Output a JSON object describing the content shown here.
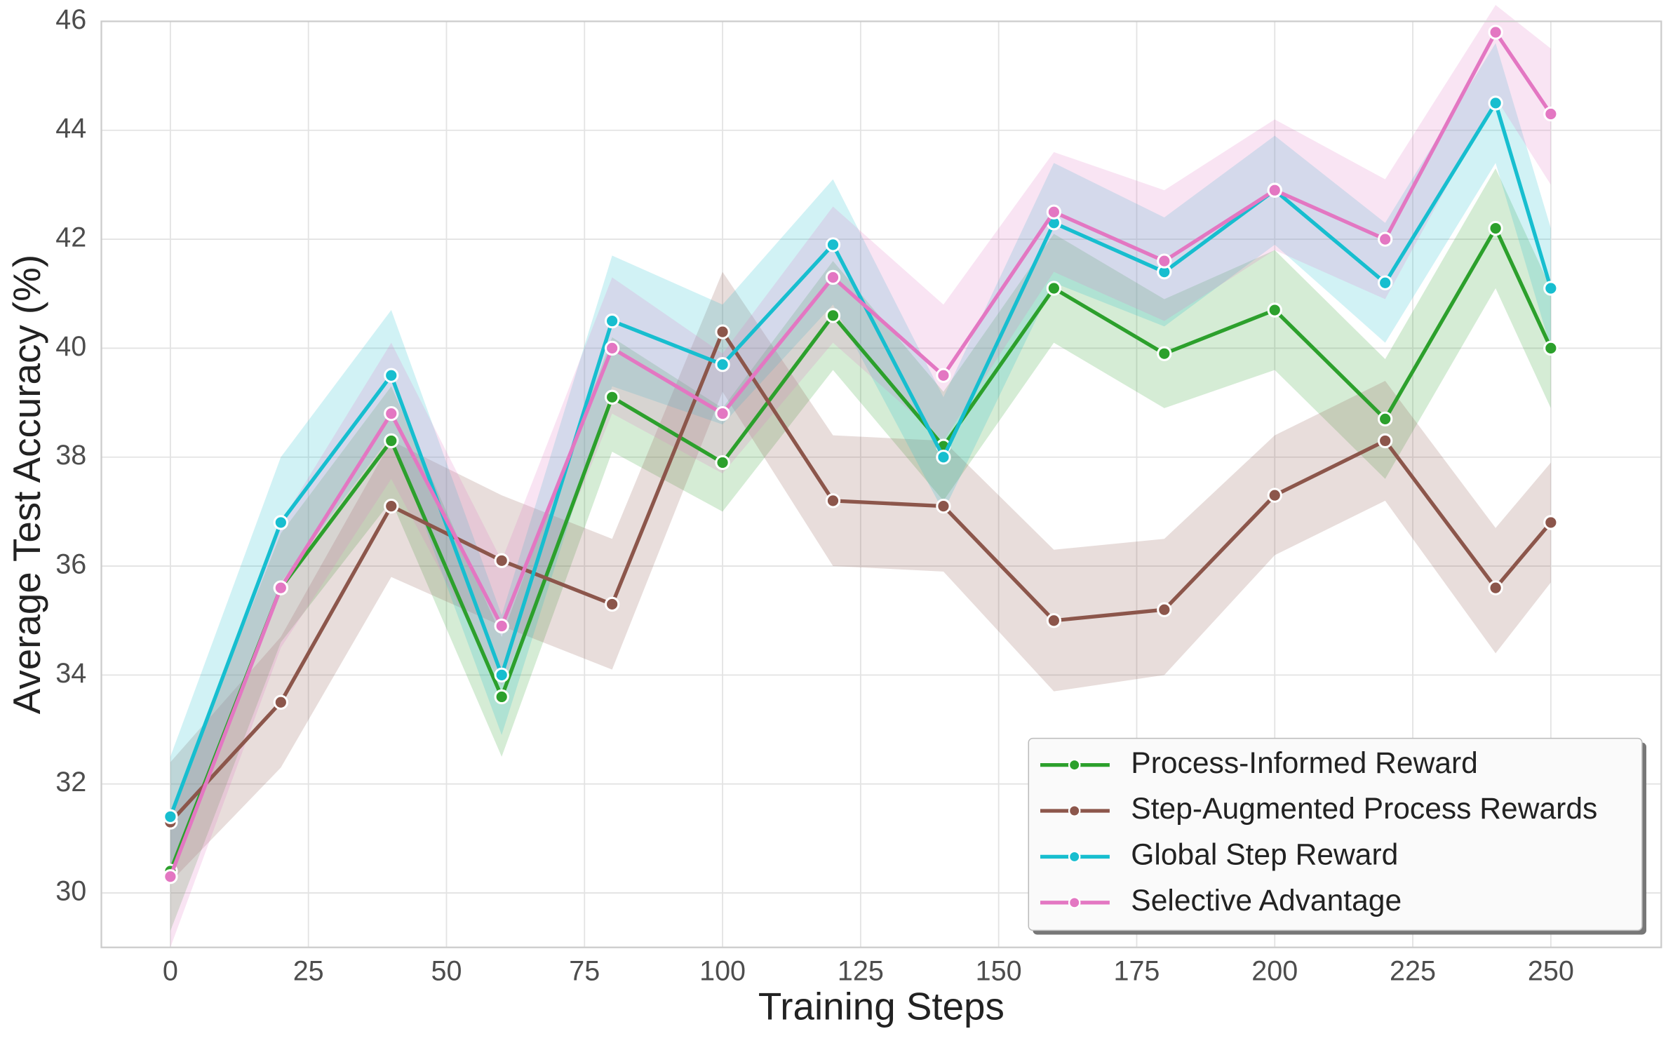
{
  "chart_data": {
    "type": "line",
    "xlabel": "Training Steps",
    "ylabel": "Average Test Accuracy (%)",
    "x": [
      0,
      20,
      40,
      60,
      80,
      100,
      120,
      140,
      160,
      180,
      200,
      220,
      240,
      250
    ],
    "xlim": [
      -12.5,
      270
    ],
    "ylim": [
      29,
      46
    ],
    "xticks": [
      0,
      25,
      50,
      75,
      100,
      125,
      150,
      175,
      200,
      225,
      250
    ],
    "yticks": [
      30,
      32,
      34,
      36,
      38,
      40,
      42,
      44,
      46
    ],
    "grid": true,
    "legend": "lower right",
    "series": [
      {
        "name": "Process-Informed Reward",
        "color": "#2ca02c",
        "values": [
          30.4,
          35.6,
          38.3,
          33.6,
          39.1,
          37.9,
          40.6,
          38.2,
          41.1,
          39.9,
          40.7,
          38.7,
          42.2,
          40.0
        ],
        "lower": [
          29.3,
          34.6,
          37.2,
          32.5,
          38.1,
          37.0,
          39.6,
          37.2,
          40.1,
          38.9,
          39.6,
          37.6,
          41.1,
          38.9
        ],
        "upper": [
          31.5,
          36.6,
          39.3,
          34.7,
          40.2,
          38.9,
          41.6,
          39.2,
          42.1,
          40.9,
          41.8,
          39.8,
          43.3,
          41.1
        ]
      },
      {
        "name": "Step-Augmented Process Rewards",
        "color": "#8c564b",
        "values": [
          31.3,
          33.5,
          37.1,
          36.1,
          35.3,
          40.3,
          37.2,
          37.1,
          35.0,
          35.2,
          37.3,
          38.3,
          35.6,
          36.8
        ],
        "lower": [
          30.2,
          32.3,
          35.8,
          34.9,
          34.1,
          39.2,
          36.0,
          35.9,
          33.7,
          34.0,
          36.2,
          37.2,
          34.4,
          35.7
        ],
        "upper": [
          32.4,
          34.7,
          38.3,
          37.3,
          36.5,
          41.4,
          38.4,
          38.3,
          36.3,
          36.5,
          38.4,
          39.4,
          36.7,
          37.9
        ]
      },
      {
        "name": "Global Step Reward",
        "color": "#17becf",
        "values": [
          31.4,
          36.8,
          39.5,
          34.0,
          40.5,
          39.7,
          41.9,
          38.0,
          42.3,
          41.4,
          42.9,
          41.2,
          44.5,
          41.1
        ],
        "lower": [
          30.3,
          35.7,
          38.4,
          32.9,
          39.3,
          38.6,
          40.8,
          37.0,
          41.2,
          40.4,
          41.9,
          40.1,
          43.4,
          40.0
        ],
        "upper": [
          32.5,
          38.0,
          40.7,
          35.1,
          41.7,
          40.8,
          43.1,
          39.1,
          43.4,
          42.4,
          43.9,
          42.3,
          45.6,
          42.2
        ]
      },
      {
        "name": "Selective Advantage",
        "color": "#e377c2",
        "values": [
          30.3,
          35.6,
          38.8,
          34.9,
          40.0,
          38.8,
          41.3,
          39.5,
          42.5,
          41.6,
          42.9,
          42.0,
          45.8,
          44.3
        ],
        "lower": [
          29.0,
          34.5,
          37.6,
          33.8,
          38.8,
          37.7,
          40.1,
          38.3,
          41.4,
          40.5,
          41.8,
          40.9,
          44.6,
          43.0
        ],
        "upper": [
          31.5,
          36.8,
          40.1,
          36.1,
          41.3,
          39.9,
          42.6,
          40.8,
          43.6,
          42.9,
          44.2,
          43.1,
          46.3,
          45.5
        ]
      }
    ]
  }
}
